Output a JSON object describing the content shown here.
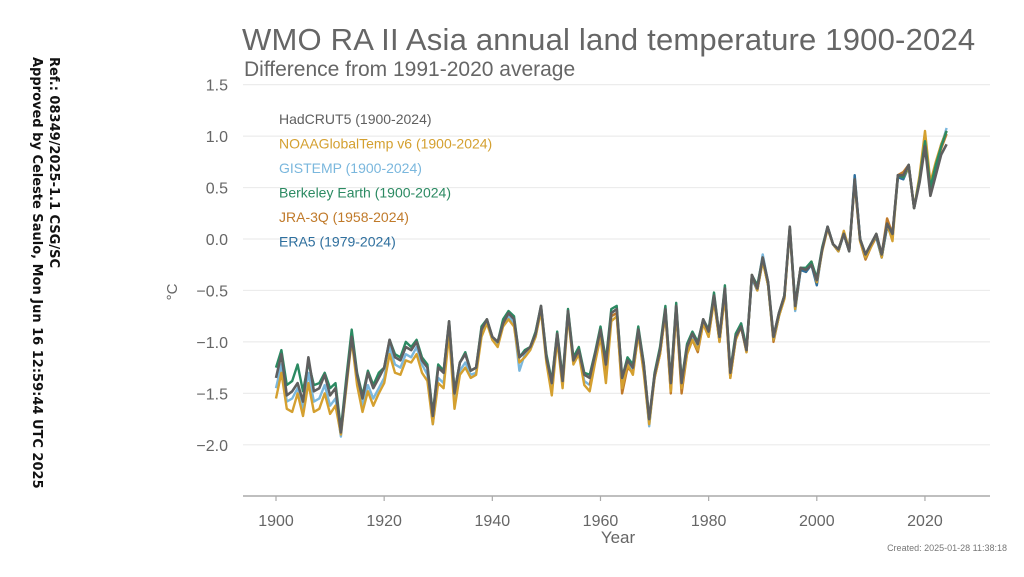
{
  "side_note": {
    "line1": "Ref.: 08349/2025-1.1 CSG/SC",
    "line2": "Approved by Celeste Saulo, Mon Jun 16 12:59:44 UTC 2025"
  },
  "created": "Created: 2025-01-28 11:38:18",
  "chart_data": {
    "type": "line",
    "title": "WMO RA II Asia annual land temperature 1900-2024",
    "subtitle": "Difference from 1991-2020 average",
    "xlabel": "Year",
    "ylabel": "°C",
    "xlim": [
      1894,
      2030
    ],
    "ylim": [
      -2.5,
      1.5
    ],
    "xticks": [
      1900,
      1920,
      1940,
      1960,
      1980,
      2000,
      2020
    ],
    "yticks": [
      1.5,
      1.0,
      0.5,
      0.0,
      -0.5,
      -1.0,
      -1.5,
      -2.0
    ],
    "ytick_labels": [
      "1.5",
      "1.0",
      "0.5",
      "0.0",
      "−0.5",
      "−1.0",
      "−1.5",
      "−2.0"
    ],
    "grid": "horizontal",
    "legend_position": "top-left",
    "series": [
      {
        "name": "HadCRUT5 (1900-2024)",
        "color": "#5f5f5f",
        "start": 1900,
        "values": [
          -1.35,
          -1.12,
          -1.52,
          -1.48,
          -1.4,
          -1.58,
          -1.15,
          -1.48,
          -1.45,
          -1.32,
          -1.52,
          -1.45,
          -1.88,
          -1.4,
          -0.95,
          -1.32,
          -1.55,
          -1.3,
          -1.45,
          -1.35,
          -1.25,
          -0.98,
          -1.15,
          -1.18,
          -1.05,
          -1.08,
          -1.0,
          -1.18,
          -1.25,
          -1.72,
          -1.25,
          -1.3,
          -0.8,
          -1.5,
          -1.2,
          -1.12,
          -1.28,
          -1.25,
          -0.88,
          -0.78,
          -0.95,
          -1.0,
          -0.82,
          -0.72,
          -0.78,
          -1.15,
          -1.1,
          -1.05,
          -0.92,
          -0.65,
          -1.15,
          -1.4,
          -0.92,
          -1.38,
          -0.7,
          -1.18,
          -1.08,
          -1.32,
          -1.35,
          -1.12,
          -0.88,
          -1.22,
          -0.72,
          -0.68,
          -1.35,
          -1.18,
          -1.25,
          -0.88,
          -1.22,
          -1.75,
          -1.32,
          -1.08,
          -0.68,
          -1.4,
          -0.65,
          -1.4,
          -1.05,
          -0.92,
          -1.02,
          -0.78,
          -0.9,
          -0.55,
          -0.95,
          -0.48,
          -1.3,
          -0.95,
          -0.85,
          -1.08,
          -0.35,
          -0.48,
          -0.18,
          -0.42,
          -0.95,
          -0.72,
          -0.55,
          0.12,
          -0.65,
          -0.28,
          -0.3,
          -0.25,
          -0.4,
          -0.1,
          0.12,
          -0.05,
          -0.1,
          0.05,
          -0.12,
          0.58,
          0.0,
          -0.15,
          -0.05,
          0.05,
          -0.15,
          0.15,
          0.05,
          0.62,
          0.62,
          0.72,
          0.3,
          0.55,
          0.9,
          0.42,
          0.62,
          0.82,
          0.92
        ]
      },
      {
        "name": "NOAAGlobalTemp v6 (1900-2024)",
        "color": "#d4a030",
        "start": 1900,
        "values": [
          -1.55,
          -1.3,
          -1.65,
          -1.68,
          -1.5,
          -1.72,
          -1.4,
          -1.68,
          -1.65,
          -1.5,
          -1.7,
          -1.62,
          -1.9,
          -1.45,
          -0.98,
          -1.42,
          -1.68,
          -1.48,
          -1.62,
          -1.5,
          -1.4,
          -1.12,
          -1.3,
          -1.32,
          -1.18,
          -1.2,
          -1.12,
          -1.3,
          -1.38,
          -1.8,
          -1.4,
          -1.45,
          -0.92,
          -1.65,
          -1.32,
          -1.25,
          -1.35,
          -1.32,
          -0.95,
          -0.82,
          -0.98,
          -1.05,
          -0.85,
          -0.78,
          -0.85,
          -1.2,
          -1.15,
          -1.08,
          -0.95,
          -0.7,
          -1.2,
          -1.52,
          -0.98,
          -1.45,
          -0.75,
          -1.22,
          -1.12,
          -1.42,
          -1.48,
          -1.2,
          -0.95,
          -1.4,
          -0.8,
          -0.75,
          -1.45,
          -1.22,
          -1.32,
          -0.92,
          -1.3,
          -1.8,
          -1.35,
          -1.12,
          -0.72,
          -1.48,
          -0.7,
          -1.45,
          -1.12,
          -0.98,
          -1.08,
          -0.82,
          -0.95,
          -0.6,
          -1.0,
          -0.55,
          -1.35,
          -0.98,
          -0.85,
          -1.1,
          -0.35,
          -0.5,
          -0.22,
          -0.45,
          -0.98,
          -0.75,
          -0.58,
          0.1,
          -0.68,
          -0.28,
          -0.3,
          -0.22,
          -0.42,
          -0.12,
          0.1,
          -0.05,
          -0.12,
          0.08,
          -0.1,
          0.55,
          -0.02,
          -0.18,
          -0.08,
          0.05,
          -0.18,
          0.15,
          -0.02,
          0.62,
          0.6,
          0.7,
          0.3,
          0.62,
          1.05,
          0.55,
          0.75,
          0.92,
          1.05
        ]
      },
      {
        "name": "GISTEMP (1900-2024)",
        "color": "#7ab7dd",
        "start": 1900,
        "values": [
          -1.45,
          -1.22,
          -1.58,
          -1.55,
          -1.45,
          -1.65,
          -1.3,
          -1.58,
          -1.55,
          -1.42,
          -1.62,
          -1.55,
          -1.92,
          -1.42,
          -0.92,
          -1.38,
          -1.62,
          -1.42,
          -1.55,
          -1.45,
          -1.35,
          -1.05,
          -1.22,
          -1.25,
          -1.12,
          -1.15,
          -1.05,
          -1.22,
          -1.32,
          -1.8,
          -1.35,
          -1.4,
          -0.88,
          -1.6,
          -1.28,
          -1.2,
          -1.32,
          -1.3,
          -0.92,
          -0.8,
          -0.98,
          -1.02,
          -0.82,
          -0.75,
          -0.82,
          -1.28,
          -1.12,
          -1.08,
          -0.95,
          -0.68,
          -1.18,
          -1.45,
          -0.95,
          -1.42,
          -0.72,
          -1.2,
          -1.1,
          -1.38,
          -1.42,
          -1.18,
          -0.9,
          -1.3,
          -0.75,
          -0.72,
          -1.4,
          -1.2,
          -1.28,
          -0.9,
          -1.25,
          -1.82,
          -1.32,
          -1.1,
          -0.7,
          -1.42,
          -0.68,
          -1.42,
          -1.08,
          -0.95,
          -1.05,
          -0.8,
          -0.92,
          -0.58,
          -0.98,
          -0.5,
          -1.32,
          -0.95,
          -0.82,
          -1.08,
          -0.38,
          -0.48,
          -0.15,
          -0.42,
          -0.98,
          -0.75,
          -0.55,
          0.1,
          -0.7,
          -0.3,
          -0.32,
          -0.25,
          -0.42,
          -0.1,
          0.12,
          -0.05,
          -0.12,
          0.05,
          -0.12,
          0.58,
          0.0,
          -0.18,
          -0.05,
          0.02,
          -0.18,
          0.12,
          0.02,
          0.6,
          0.58,
          0.72,
          0.3,
          0.58,
          0.95,
          0.48,
          0.7,
          0.9,
          1.08
        ]
      },
      {
        "name": "Berkeley Earth (1900-2024)",
        "color": "#2b8a62",
        "start": 1900,
        "values": [
          -1.25,
          -1.08,
          -1.42,
          -1.38,
          -1.22,
          -1.48,
          -1.2,
          -1.42,
          -1.4,
          -1.3,
          -1.45,
          -1.4,
          -1.85,
          -1.35,
          -0.88,
          -1.3,
          -1.52,
          -1.28,
          -1.42,
          -1.3,
          -1.25,
          -0.98,
          -1.12,
          -1.15,
          -1.0,
          -1.05,
          -0.98,
          -1.15,
          -1.22,
          -1.7,
          -1.22,
          -1.28,
          -0.8,
          -1.48,
          -1.2,
          -1.1,
          -1.28,
          -1.25,
          -0.85,
          -0.78,
          -0.95,
          -1.0,
          -0.78,
          -0.7,
          -0.75,
          -1.15,
          -1.08,
          -1.05,
          -0.9,
          -0.65,
          -1.12,
          -1.38,
          -0.9,
          -1.35,
          -0.68,
          -1.15,
          -1.05,
          -1.3,
          -1.32,
          -1.1,
          -0.85,
          -1.18,
          -0.68,
          -0.65,
          -1.35,
          -1.15,
          -1.22,
          -0.85,
          -1.2,
          -1.75,
          -1.3,
          -1.05,
          -0.65,
          -1.38,
          -0.62,
          -1.38,
          -1.02,
          -0.9,
          -1.0,
          -0.78,
          -0.88,
          -0.52,
          -0.95,
          -0.45,
          -1.28,
          -0.92,
          -0.82,
          -1.05,
          -0.35,
          -0.45,
          -0.18,
          -0.42,
          -0.95,
          -0.72,
          -0.55,
          0.12,
          -0.62,
          -0.28,
          -0.28,
          -0.22,
          -0.38,
          -0.08,
          0.12,
          -0.05,
          -0.1,
          0.05,
          -0.12,
          0.58,
          0.0,
          -0.15,
          -0.05,
          0.05,
          -0.15,
          0.15,
          0.05,
          0.62,
          0.6,
          0.72,
          0.3,
          0.58,
          0.95,
          0.5,
          0.72,
          0.9,
          1.05
        ]
      },
      {
        "name": "JRA-3Q (1958-2024)",
        "color": "#c07a2a",
        "start": 1958,
        "values": [
          -1.42,
          -1.18,
          -0.92,
          -1.32,
          -0.75,
          -0.72,
          -1.5,
          -1.25,
          -1.3,
          -0.92,
          -1.28,
          -1.75,
          -1.35,
          -1.12,
          -0.72,
          -1.5,
          -0.7,
          -1.5,
          -1.12,
          -0.98,
          -1.1,
          -0.82,
          -0.95,
          -0.58,
          -1.0,
          -0.52,
          -1.35,
          -0.98,
          -0.85,
          -1.1,
          -0.35,
          -0.5,
          -0.2,
          -0.45,
          -1.0,
          -0.75,
          -0.58,
          0.1,
          -0.65,
          -0.28,
          -0.32,
          -0.22,
          -0.4,
          -0.1,
          0.1,
          -0.05,
          -0.12,
          0.05,
          -0.12,
          0.55,
          -0.02,
          -0.2,
          -0.08,
          0.02,
          -0.15,
          0.2,
          0.05,
          0.62,
          0.65,
          0.72,
          0.3,
          0.58,
          0.98,
          0.52,
          0.72,
          0.88,
          1.02
        ]
      },
      {
        "name": "ERA5 (1979-2024)",
        "color": "#2e6f9e",
        "start": 1979,
        "values": [
          -0.8,
          -0.92,
          -0.58,
          -0.98,
          -0.52,
          -1.3,
          -0.95,
          -0.85,
          -1.08,
          -0.38,
          -0.5,
          -0.2,
          -0.45,
          -0.98,
          -0.75,
          -0.55,
          0.1,
          -0.68,
          -0.3,
          -0.32,
          -0.25,
          -0.45,
          -0.1,
          0.12,
          -0.05,
          -0.12,
          0.05,
          -0.12,
          0.62,
          0.0,
          -0.18,
          -0.05,
          0.02,
          -0.18,
          0.12,
          0.02,
          0.6,
          0.58,
          0.7,
          0.3,
          0.58,
          0.95,
          0.48,
          0.7,
          0.92,
          1.05
        ]
      }
    ]
  }
}
